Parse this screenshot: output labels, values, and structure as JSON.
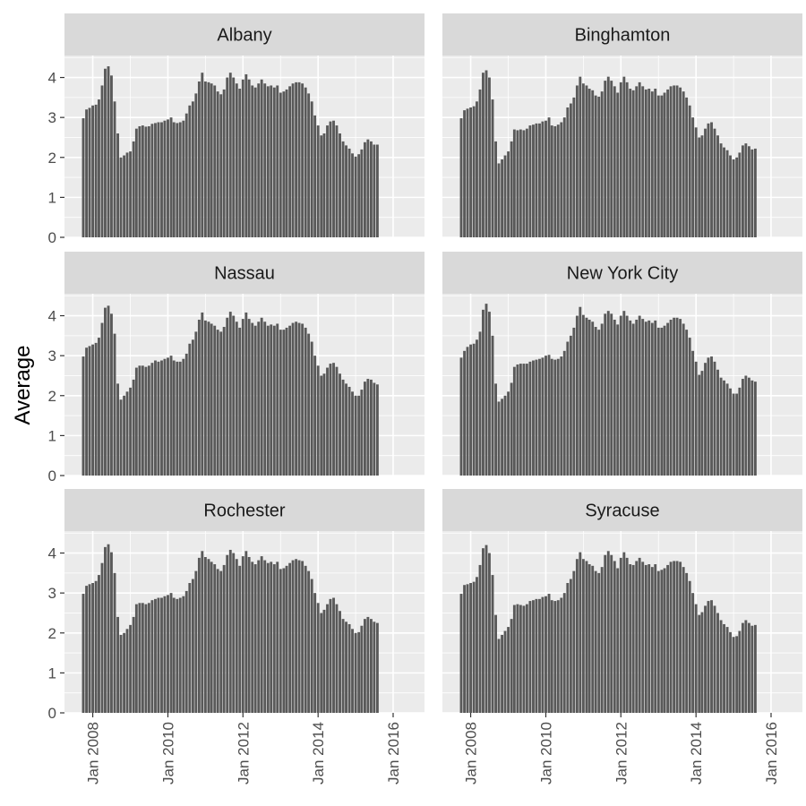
{
  "chart_data": {
    "type": "bar",
    "ylabel": "Average",
    "xlabel": "",
    "ylim": [
      0,
      4.55
    ],
    "y_ticks": [
      0,
      1,
      2,
      3,
      4
    ],
    "x_range": [
      "2007-04-01",
      "2016-11-01"
    ],
    "x_ticks": [
      {
        "date": "2008-01-01",
        "label": "Jan 2008"
      },
      {
        "date": "2010-01-01",
        "label": "Jan 2010"
      },
      {
        "date": "2012-01-01",
        "label": "Jan 2012"
      },
      {
        "date": "2014-01-01",
        "label": "Jan 2014"
      },
      {
        "date": "2016-01-01",
        "label": "Jan 2016"
      }
    ],
    "first_month": "2007-10",
    "grid": true,
    "colors": {
      "bar": "#595959",
      "panel": "#ebebeb",
      "strip": "#d9d9d9",
      "grid": "#ffffff"
    },
    "series": [
      {
        "name": "Albany",
        "values": [
          2.98,
          3.2,
          3.24,
          3.3,
          3.32,
          3.45,
          3.8,
          4.22,
          4.28,
          4.05,
          3.4,
          2.6,
          2.0,
          2.05,
          2.12,
          2.15,
          2.4,
          2.72,
          2.78,
          2.8,
          2.77,
          2.78,
          2.84,
          2.86,
          2.88,
          2.88,
          2.92,
          2.95,
          3.0,
          2.88,
          2.86,
          2.88,
          2.92,
          3.1,
          3.3,
          3.4,
          3.6,
          3.9,
          4.12,
          3.9,
          3.88,
          3.85,
          3.8,
          3.65,
          3.58,
          3.7,
          4.0,
          4.12,
          4.0,
          3.85,
          3.72,
          3.95,
          4.08,
          3.95,
          3.8,
          3.75,
          3.85,
          3.95,
          3.85,
          3.78,
          3.8,
          3.75,
          3.8,
          3.62,
          3.65,
          3.7,
          3.78,
          3.85,
          3.88,
          3.88,
          3.85,
          3.75,
          3.6,
          3.4,
          3.05,
          2.8,
          2.55,
          2.6,
          2.8,
          2.9,
          2.92,
          2.8,
          2.6,
          2.4,
          2.3,
          2.22,
          2.1,
          2.02,
          2.08,
          2.2,
          2.38,
          2.45,
          2.4,
          2.32,
          2.32
        ]
      },
      {
        "name": "Binghamton",
        "values": [
          2.98,
          3.18,
          3.22,
          3.25,
          3.28,
          3.4,
          3.7,
          4.12,
          4.18,
          4.0,
          3.45,
          2.4,
          1.85,
          1.95,
          2.05,
          2.15,
          2.4,
          2.7,
          2.68,
          2.7,
          2.68,
          2.72,
          2.8,
          2.82,
          2.85,
          2.85,
          2.9,
          2.92,
          3.0,
          2.8,
          2.78,
          2.82,
          2.88,
          3.0,
          3.25,
          3.35,
          3.5,
          3.8,
          4.02,
          3.85,
          3.8,
          3.72,
          3.68,
          3.55,
          3.52,
          3.65,
          3.92,
          4.02,
          3.92,
          3.78,
          3.62,
          3.88,
          4.02,
          3.88,
          3.72,
          3.68,
          3.78,
          3.88,
          3.78,
          3.7,
          3.72,
          3.65,
          3.72,
          3.55,
          3.55,
          3.62,
          3.7,
          3.78,
          3.8,
          3.8,
          3.75,
          3.65,
          3.5,
          3.3,
          3.0,
          2.75,
          2.5,
          2.55,
          2.72,
          2.85,
          2.88,
          2.72,
          2.55,
          2.35,
          2.25,
          2.18,
          2.05,
          1.95,
          2.0,
          2.12,
          2.3,
          2.35,
          2.28,
          2.2,
          2.22
        ]
      },
      {
        "name": "Nassau",
        "values": [
          2.98,
          3.2,
          3.24,
          3.28,
          3.32,
          3.45,
          3.82,
          4.2,
          4.25,
          4.05,
          3.55,
          2.3,
          1.9,
          2.0,
          2.1,
          2.2,
          2.4,
          2.7,
          2.75,
          2.75,
          2.72,
          2.75,
          2.82,
          2.88,
          2.85,
          2.88,
          2.92,
          2.95,
          3.0,
          2.88,
          2.85,
          2.85,
          2.92,
          3.05,
          3.3,
          3.4,
          3.6,
          3.9,
          4.08,
          3.88,
          3.85,
          3.8,
          3.75,
          3.65,
          3.6,
          3.72,
          3.95,
          4.1,
          4.0,
          3.85,
          3.7,
          3.92,
          4.08,
          3.92,
          3.82,
          3.75,
          3.85,
          3.95,
          3.85,
          3.75,
          3.78,
          3.75,
          3.8,
          3.65,
          3.65,
          3.7,
          3.75,
          3.82,
          3.85,
          3.82,
          3.8,
          3.7,
          3.55,
          3.35,
          3.0,
          2.75,
          2.5,
          2.55,
          2.7,
          2.8,
          2.82,
          2.72,
          2.55,
          2.4,
          2.3,
          2.22,
          2.1,
          2.0,
          2.0,
          2.15,
          2.35,
          2.42,
          2.4,
          2.32,
          2.28
        ]
      },
      {
        "name": "New York City",
        "values": [
          2.95,
          3.12,
          3.22,
          3.28,
          3.3,
          3.4,
          3.6,
          4.15,
          4.3,
          4.1,
          3.5,
          2.3,
          1.85,
          1.92,
          2.0,
          2.1,
          2.32,
          2.72,
          2.78,
          2.8,
          2.8,
          2.8,
          2.85,
          2.88,
          2.9,
          2.92,
          2.95,
          3.0,
          3.02,
          2.92,
          2.9,
          2.92,
          2.98,
          3.12,
          3.35,
          3.5,
          3.7,
          4.0,
          4.22,
          4.02,
          3.95,
          3.9,
          3.85,
          3.72,
          3.65,
          3.8,
          4.05,
          4.12,
          4.05,
          3.9,
          3.78,
          4.0,
          4.12,
          4.0,
          3.88,
          3.8,
          3.9,
          4.0,
          3.92,
          3.85,
          3.88,
          3.82,
          3.88,
          3.7,
          3.7,
          3.75,
          3.82,
          3.9,
          3.95,
          3.95,
          3.92,
          3.8,
          3.65,
          3.45,
          3.12,
          2.85,
          2.52,
          2.62,
          2.82,
          2.95,
          2.98,
          2.85,
          2.65,
          2.45,
          2.38,
          2.3,
          2.18,
          2.05,
          2.05,
          2.2,
          2.42,
          2.5,
          2.45,
          2.38,
          2.35
        ]
      },
      {
        "name": "Rochester",
        "values": [
          2.98,
          3.18,
          3.22,
          3.25,
          3.3,
          3.45,
          3.75,
          4.15,
          4.22,
          4.02,
          3.5,
          2.4,
          1.95,
          2.0,
          2.1,
          2.2,
          2.4,
          2.72,
          2.75,
          2.75,
          2.72,
          2.75,
          2.82,
          2.85,
          2.88,
          2.88,
          2.92,
          2.95,
          3.0,
          2.88,
          2.85,
          2.88,
          2.92,
          3.05,
          3.25,
          3.35,
          3.55,
          3.88,
          4.05,
          3.9,
          3.85,
          3.78,
          3.72,
          3.6,
          3.55,
          3.7,
          3.95,
          4.08,
          4.0,
          3.85,
          3.68,
          3.92,
          4.05,
          3.9,
          3.78,
          3.72,
          3.82,
          3.92,
          3.82,
          3.75,
          3.78,
          3.72,
          3.78,
          3.6,
          3.62,
          3.68,
          3.75,
          3.82,
          3.85,
          3.82,
          3.8,
          3.68,
          3.55,
          3.35,
          3.0,
          2.75,
          2.5,
          2.58,
          2.72,
          2.85,
          2.88,
          2.72,
          2.55,
          2.35,
          2.28,
          2.22,
          2.1,
          2.0,
          2.02,
          2.18,
          2.35,
          2.4,
          2.35,
          2.28,
          2.25
        ]
      },
      {
        "name": "Syracuse",
        "values": [
          2.98,
          3.2,
          3.22,
          3.25,
          3.28,
          3.4,
          3.7,
          4.12,
          4.2,
          4.0,
          3.45,
          2.45,
          1.85,
          1.95,
          2.05,
          2.15,
          2.35,
          2.7,
          2.72,
          2.7,
          2.68,
          2.72,
          2.8,
          2.82,
          2.85,
          2.85,
          2.9,
          2.92,
          2.98,
          2.82,
          2.8,
          2.82,
          2.88,
          3.0,
          3.25,
          3.35,
          3.55,
          3.85,
          4.02,
          3.85,
          3.8,
          3.72,
          3.68,
          3.55,
          3.5,
          3.65,
          3.95,
          4.05,
          3.95,
          3.8,
          3.62,
          3.88,
          4.02,
          3.88,
          3.72,
          3.7,
          3.8,
          3.88,
          3.78,
          3.7,
          3.72,
          3.65,
          3.72,
          3.55,
          3.58,
          3.62,
          3.7,
          3.78,
          3.8,
          3.8,
          3.78,
          3.65,
          3.5,
          3.3,
          3.0,
          2.72,
          2.45,
          2.52,
          2.68,
          2.8,
          2.82,
          2.68,
          2.5,
          2.32,
          2.22,
          2.15,
          2.02,
          1.9,
          1.92,
          2.05,
          2.25,
          2.32,
          2.25,
          2.18,
          2.2
        ]
      }
    ]
  }
}
